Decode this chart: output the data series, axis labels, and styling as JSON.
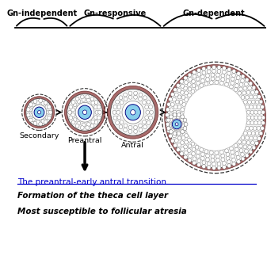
{
  "bg_color": "#ffffff",
  "title_color": "#0000cc",
  "italic_text_color": "#000000",
  "header_gn_independent": "Gn-independent",
  "header_gn_responsive": "Gn-responsive",
  "header_gn_dependent": "Gn-dependent",
  "label_secondary": "Secondary",
  "label_preantral": "Preantral",
  "label_antral": "Antral",
  "transition_text": "The preantral-early antral transition",
  "italic_line1": "Formation of the theca cell layer",
  "italic_line2": "Most susceptible to follicular atresia",
  "follicle_colors": {
    "oocyte_fill": "#87ceeb",
    "oocyte_edge": "#000080",
    "granulosa_fill": "#f5f5f5",
    "granulosa_edge": "#333333",
    "theca_fill": "#8b3a3a",
    "theca_edge": "#4a0000",
    "outer_dashed": "#333333"
  }
}
